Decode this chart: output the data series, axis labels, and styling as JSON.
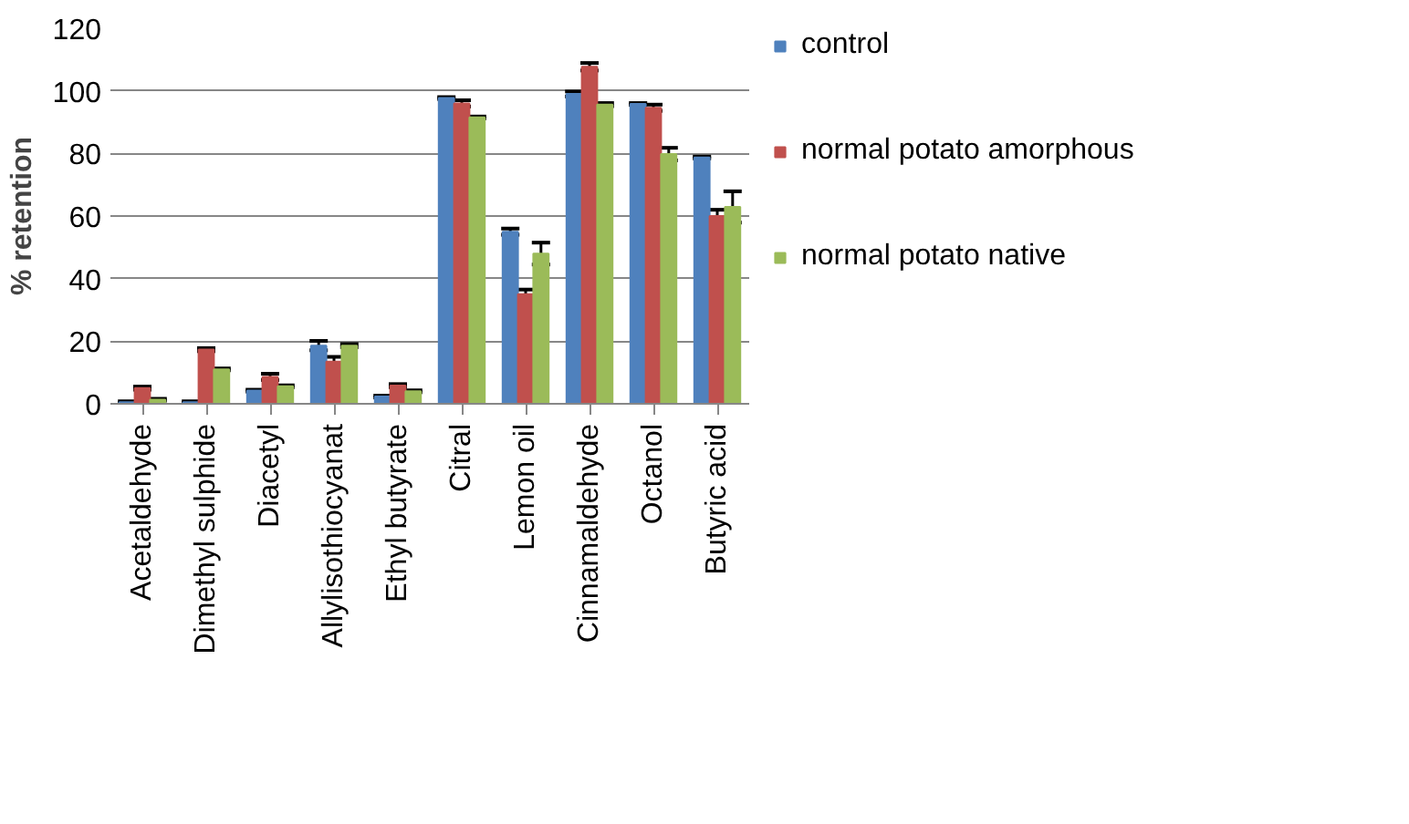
{
  "chart_data": {
    "type": "bar",
    "ylabel": "% retention",
    "categories": [
      "Acetaldehyde",
      "Dimethyl sulphide",
      "Diacetyl",
      "Allylisothiocyanat",
      "Ethyl butyrate",
      "Citral",
      "Lemon oil",
      "Cinnamaldehyde",
      "Octanol",
      "Butyric acid"
    ],
    "series": [
      {
        "name": "control",
        "color": "#4f81bd",
        "values": [
          0.5,
          0.5,
          4.2,
          18.6,
          2.3,
          97.7,
          55,
          99,
          95.8,
          78.7
        ],
        "errors": [
          0.3,
          0.3,
          0.3,
          1.5,
          0.3,
          0.3,
          1,
          0.8,
          0.3,
          0.3
        ]
      },
      {
        "name": "normal potato amorphous",
        "color": "#c0504d",
        "values": [
          5,
          17.3,
          8.6,
          13.5,
          5.8,
          96,
          35,
          107.7,
          94.6,
          60
        ],
        "errors": [
          0.5,
          0.5,
          1,
          1.5,
          0.5,
          1,
          1.5,
          1.2,
          1,
          2
        ]
      },
      {
        "name": "normal potato native",
        "color": "#9bbb59",
        "values": [
          1.3,
          11,
          5.6,
          18.6,
          4,
          91.5,
          48,
          95.6,
          79.8,
          62.9
        ],
        "errors": [
          0.3,
          0.3,
          0.3,
          0.5,
          0.3,
          0.3,
          3.5,
          0.5,
          2,
          5
        ]
      }
    ],
    "ylim": [
      0,
      120
    ],
    "yticks": [
      0,
      20,
      40,
      60,
      80,
      100,
      120
    ],
    "grid": "y",
    "legend": "right"
  }
}
